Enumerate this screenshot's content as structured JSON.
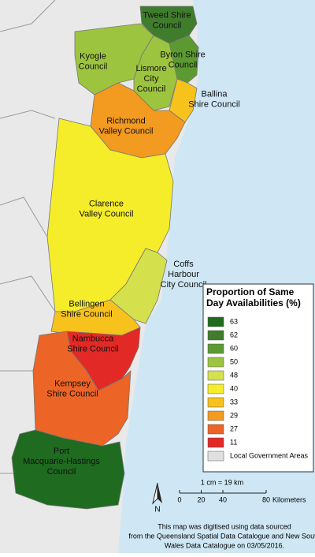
{
  "regions": [
    {
      "lines": [
        "Tweed Shire",
        "Council"
      ],
      "color": "#3f7d2c"
    },
    {
      "lines": [
        "Byron Shire",
        "Council"
      ],
      "color": "#5b9a30"
    },
    {
      "lines": [
        "Kyogle",
        "Council"
      ],
      "color": "#9dc43e"
    },
    {
      "lines": [
        "Lismore",
        "City",
        "Council"
      ],
      "color": "#9dc43e"
    },
    {
      "lines": [
        "Ballina",
        "Shire Council"
      ],
      "color": "#f8c21c"
    },
    {
      "lines": [
        "Richmond",
        "Valley Council"
      ],
      "color": "#f39a20"
    },
    {
      "lines": [
        "Clarence",
        "Valley Council"
      ],
      "color": "#f5ec2a"
    },
    {
      "lines": [
        "Coffs",
        "Harbour",
        "City Council"
      ],
      "color": "#d4e04c"
    },
    {
      "lines": [
        "Bellingen",
        "Shire Council"
      ],
      "color": "#f8c21c"
    },
    {
      "lines": [
        "Nambucca",
        "Shire Council"
      ],
      "color": "#e32926"
    },
    {
      "lines": [
        "Kempsey",
        "Shire Council"
      ],
      "color": "#ec6426"
    },
    {
      "lines": [
        "Port",
        "Macquarie-Hastings",
        "Council"
      ],
      "color": "#1f6b20"
    }
  ],
  "legend": {
    "title": [
      "Proportion of Same",
      "Day Availabilities (%)"
    ],
    "items": [
      {
        "value": 63,
        "color": "#1f6b20"
      },
      {
        "value": 62,
        "color": "#3f7d2c"
      },
      {
        "value": 60,
        "color": "#5b9a30"
      },
      {
        "value": 50,
        "color": "#9dc43e"
      },
      {
        "value": 48,
        "color": "#d4e04c"
      },
      {
        "value": 40,
        "color": "#f5ec2a"
      },
      {
        "value": 33,
        "color": "#f8c21c"
      },
      {
        "value": 29,
        "color": "#f39a20"
      },
      {
        "value": 27,
        "color": "#ec6426"
      },
      {
        "value": 11,
        "color": "#e32926"
      }
    ],
    "other": "Local Government Areas"
  },
  "scale": {
    "ratio": "1 cm = 19 km",
    "ticks": [
      0,
      20,
      40,
      80
    ],
    "unit": "Kilometers"
  },
  "north": "N",
  "footnote": [
    "This map was digitised using data sourced",
    "from the Queensland Spatial Data Catalogue and New South",
    "Wales Data Catalogue on 03/05/2016."
  ]
}
